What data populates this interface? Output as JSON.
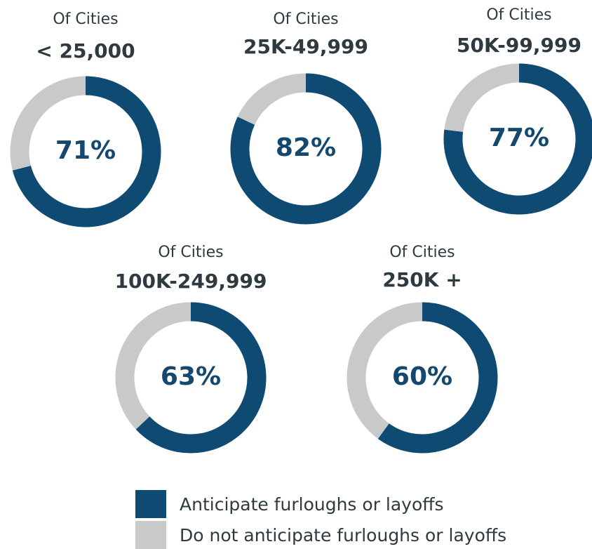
{
  "legend": {
    "items": [
      {
        "name": "Anticipate furloughs or layoffs",
        "color": "#0f4a72"
      },
      {
        "name": "Do not anticipate furloughs or layoffs",
        "color": "#c9c9c9"
      }
    ]
  },
  "chart_data": [
    {
      "type": "donut",
      "title": "Of Cities",
      "subtitle": "< 25,000",
      "values": [
        71,
        29
      ],
      "value_labels": [
        "71%",
        null
      ]
    },
    {
      "type": "donut",
      "title": "Of Cities",
      "subtitle": "25K-49,999",
      "values": [
        82,
        18
      ],
      "value_labels": [
        "82%",
        null
      ]
    },
    {
      "type": "donut",
      "title": "Of Cities",
      "subtitle": "50K-99,999",
      "values": [
        77,
        23
      ],
      "value_labels": [
        "77%",
        null
      ]
    },
    {
      "type": "donut",
      "title": "Of Cities",
      "subtitle": "100K-249,999",
      "values": [
        63,
        37
      ],
      "value_labels": [
        "63%",
        null
      ]
    },
    {
      "type": "donut",
      "title": "Of Cities",
      "subtitle": "250K +",
      "values": [
        60,
        40
      ],
      "value_labels": [
        "60%",
        null
      ]
    }
  ]
}
